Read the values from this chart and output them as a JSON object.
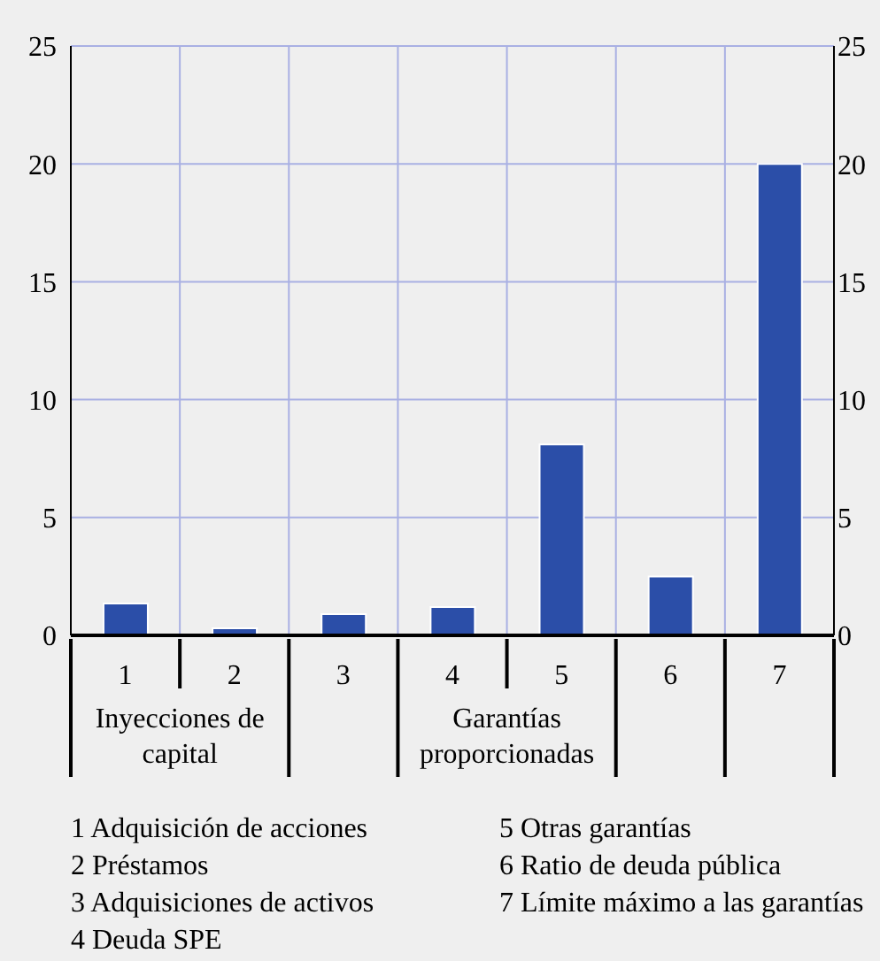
{
  "chart_data": {
    "type": "bar",
    "categories": [
      "1",
      "2",
      "3",
      "4",
      "5",
      "6",
      "7"
    ],
    "values": [
      1.35,
      0.3,
      0.9,
      1.2,
      8.1,
      2.5,
      20
    ],
    "color": "#2b4ea8",
    "ylim": [
      0,
      25
    ],
    "yticks": [
      0,
      5,
      10,
      15,
      20,
      25
    ],
    "y2lim": [
      0,
      25
    ],
    "y2ticks": [
      0,
      5,
      10,
      15,
      20,
      25
    ],
    "grid": true,
    "annotations": [
      "Inyecciones de capital",
      "Garantías proporcionadas",
      "1 Adquisición de acciones",
      "2 Préstamos",
      "3 Adquisiciones de activos",
      "4 Deuda SPE",
      "5 Otras garantías",
      "6 Ratio de deuda pública",
      "7 Límite máximo a las garantías"
    ]
  }
}
